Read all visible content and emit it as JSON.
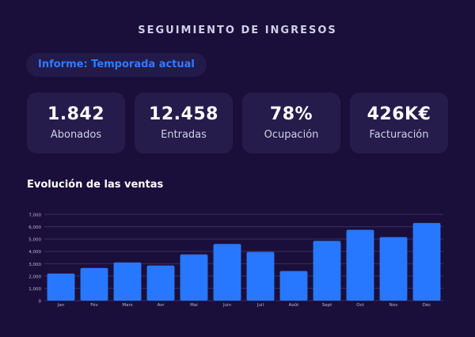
{
  "header": {
    "title": "SEGUIMIENTO DE INGRESOS"
  },
  "report": {
    "label": "Informe: Temporada actual"
  },
  "kpis": [
    {
      "value": "1.842",
      "label": "Abonados"
    },
    {
      "value": "12.458",
      "label": "Entradas"
    },
    {
      "value": "78%",
      "label": "Ocupación"
    },
    {
      "value": "426K€",
      "label": "Facturación"
    }
  ],
  "chart_section": {
    "title": "Evolución de las ventas"
  },
  "chart_data": {
    "type": "bar",
    "categories": [
      "Jan",
      "Fév",
      "Mars",
      "Avr",
      "Mai",
      "Juin",
      "Juil",
      "Août",
      "Sept",
      "Oct",
      "Nov",
      "Déc"
    ],
    "values": [
      2200,
      2650,
      3100,
      2850,
      3750,
      4600,
      3950,
      2400,
      4850,
      5750,
      5150,
      6300
    ],
    "ylim": [
      0,
      7000
    ],
    "yticks": [
      "0",
      "1,000",
      "2,000",
      "3,000",
      "4,000",
      "5,000",
      "6,000",
      "7,000"
    ],
    "grid": true,
    "bar_color": "#2878ff",
    "grid_color": "#3a2f66"
  },
  "colors": {
    "background": "#1a0f3a",
    "card": "#251c4b",
    "accent": "#2f7bff"
  }
}
